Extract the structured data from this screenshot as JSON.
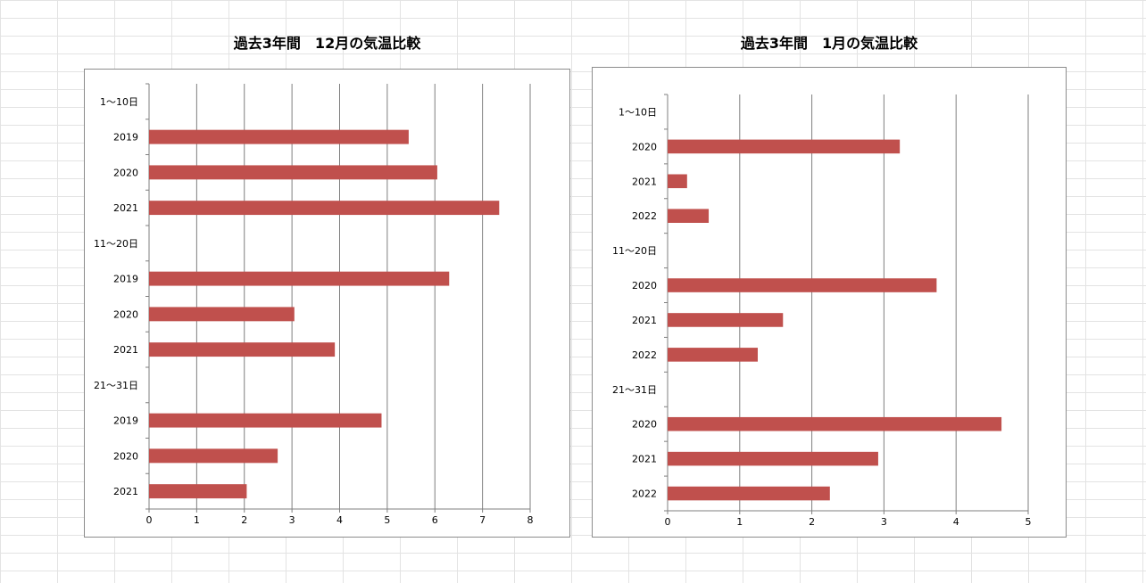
{
  "colors": {
    "bar": "#c0504d",
    "gridline": "#7f7f7f",
    "frame": "#8c8c8c",
    "sheet_grid": "#e3e3e3"
  },
  "chart_data": [
    {
      "type": "bar",
      "orientation": "horizontal",
      "title": "過去3年間　12月の気温比較",
      "categories": [
        "1〜10日",
        "2019",
        "2020",
        "2021",
        "11〜20日",
        "2019",
        "2020",
        "2021",
        "21〜31日",
        "2019",
        "2020",
        "2021"
      ],
      "values": [
        null,
        5.45,
        6.05,
        7.35,
        null,
        6.3,
        3.05,
        3.9,
        null,
        4.88,
        2.7,
        2.05
      ],
      "xlim": [
        0,
        8
      ],
      "xticks": [
        0,
        1,
        2,
        3,
        4,
        5,
        6,
        7,
        8
      ],
      "grid": true,
      "legend": "none"
    },
    {
      "type": "bar",
      "orientation": "horizontal",
      "title": "過去3年間　1月の気温比較",
      "categories": [
        "1〜10日",
        "2020",
        "2021",
        "2022",
        "11〜20日",
        "2020",
        "2021",
        "2022",
        "21〜31日",
        "2020",
        "2021",
        "2022"
      ],
      "values": [
        null,
        3.22,
        0.27,
        0.57,
        null,
        3.73,
        1.6,
        1.25,
        null,
        4.63,
        2.92,
        2.25
      ],
      "xlim": [
        0,
        5
      ],
      "xticks": [
        0,
        1,
        2,
        3,
        4,
        5
      ],
      "grid": true,
      "legend": "none"
    }
  ]
}
